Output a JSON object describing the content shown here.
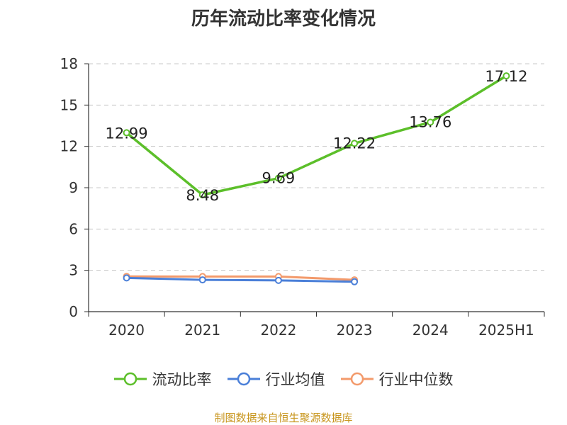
{
  "chart_data": {
    "type": "line",
    "title": "历年流动比率变化情况",
    "categories": [
      "2020",
      "2021",
      "2022",
      "2023",
      "2024",
      "2025H1"
    ],
    "ylim": [
      0,
      18
    ],
    "yticks": [
      "0",
      "3",
      "6",
      "9",
      "12",
      "15",
      "18"
    ],
    "grid": true,
    "legend_position": "bottom",
    "series": [
      {
        "name": "流动比率",
        "color": "#5cbf2a",
        "values": [
          12.99,
          8.48,
          9.69,
          12.22,
          13.76,
          17.12
        ],
        "labels": [
          "12.99",
          "8.48",
          "9.69",
          "12.22",
          "13.76",
          "17.12"
        ]
      },
      {
        "name": "行业均值",
        "color": "#4a7fd8",
        "values": [
          2.45,
          2.31,
          2.27,
          2.17,
          null,
          null
        ]
      },
      {
        "name": "行业中位数",
        "color": "#f39a6b",
        "values": [
          2.56,
          2.55,
          2.55,
          2.31,
          null,
          null
        ]
      }
    ]
  },
  "footer": {
    "source": "制图数据来自恒生聚源数据库"
  }
}
